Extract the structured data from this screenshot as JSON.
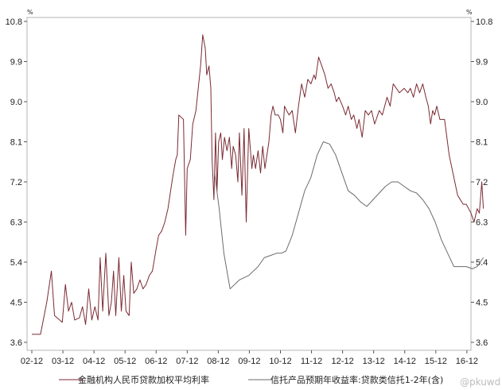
{
  "chart_data": {
    "type": "line",
    "y_unit": "%",
    "ylim": [
      3.6,
      10.8
    ],
    "y_ticks": [
      "10.8",
      "9.9",
      "9.0",
      "8.1",
      "7.2",
      "6.3",
      "5.4",
      "4.5",
      "3.6"
    ],
    "x_range": [
      2002.92,
      2017.0
    ],
    "x_ticks": [
      {
        "x": 2002.92,
        "label": "02-12"
      },
      {
        "x": 2003.92,
        "label": "03-12"
      },
      {
        "x": 2004.92,
        "label": "04-12"
      },
      {
        "x": 2005.92,
        "label": "05-12"
      },
      {
        "x": 2006.92,
        "label": "06-12"
      },
      {
        "x": 2007.92,
        "label": "07-12"
      },
      {
        "x": 2008.92,
        "label": "08-12"
      },
      {
        "x": 2009.92,
        "label": "09-12"
      },
      {
        "x": 2010.92,
        "label": "10-12"
      },
      {
        "x": 2011.92,
        "label": "11-12"
      },
      {
        "x": 2012.92,
        "label": "12-12"
      },
      {
        "x": 2013.92,
        "label": "13-12"
      },
      {
        "x": 2014.92,
        "label": "14-12"
      },
      {
        "x": 2015.92,
        "label": "15-12"
      },
      {
        "x": 2016.92,
        "label": "16-12"
      }
    ],
    "series": [
      {
        "name": "金融机构人民币贷款加权平均利率",
        "color": "#7b2a33",
        "points": [
          [
            2002.92,
            3.78
          ],
          [
            2003.2,
            3.78
          ],
          [
            2003.4,
            4.5
          ],
          [
            2003.55,
            5.2
          ],
          [
            2003.65,
            4.2
          ],
          [
            2003.9,
            4.05
          ],
          [
            2004.0,
            4.9
          ],
          [
            2004.1,
            4.3
          ],
          [
            2004.2,
            4.5
          ],
          [
            2004.3,
            4.1
          ],
          [
            2004.45,
            4.15
          ],
          [
            2004.55,
            4.4
          ],
          [
            2004.65,
            4.0
          ],
          [
            2004.75,
            4.8
          ],
          [
            2004.85,
            4.1
          ],
          [
            2004.95,
            4.4
          ],
          [
            2005.05,
            4.1
          ],
          [
            2005.12,
            5.5
          ],
          [
            2005.2,
            4.3
          ],
          [
            2005.3,
            5.6
          ],
          [
            2005.4,
            4.2
          ],
          [
            2005.48,
            4.5
          ],
          [
            2005.55,
            5.2
          ],
          [
            2005.62,
            4.2
          ],
          [
            2005.72,
            5.5
          ],
          [
            2005.8,
            4.3
          ],
          [
            2005.88,
            5.1
          ],
          [
            2005.95,
            4.3
          ],
          [
            2006.05,
            4.2
          ],
          [
            2006.12,
            5.4
          ],
          [
            2006.2,
            4.7
          ],
          [
            2006.3,
            4.8
          ],
          [
            2006.4,
            5.0
          ],
          [
            2006.5,
            4.8
          ],
          [
            2006.6,
            4.9
          ],
          [
            2006.7,
            5.1
          ],
          [
            2006.8,
            5.2
          ],
          [
            2006.92,
            5.7
          ],
          [
            2007.0,
            6.0
          ],
          [
            2007.1,
            6.1
          ],
          [
            2007.2,
            6.3
          ],
          [
            2007.3,
            6.6
          ],
          [
            2007.45,
            7.3
          ],
          [
            2007.55,
            7.7
          ],
          [
            2007.6,
            7.8
          ],
          [
            2007.65,
            8.7
          ],
          [
            2007.8,
            8.6
          ],
          [
            2007.87,
            6.0
          ],
          [
            2007.92,
            7.5
          ],
          [
            2008.02,
            7.7
          ],
          [
            2008.1,
            8.5
          ],
          [
            2008.2,
            8.8
          ],
          [
            2008.35,
            9.8
          ],
          [
            2008.42,
            10.5
          ],
          [
            2008.5,
            10.2
          ],
          [
            2008.55,
            9.6
          ],
          [
            2008.62,
            9.8
          ],
          [
            2008.68,
            9.3
          ],
          [
            2008.72,
            7.7
          ],
          [
            2008.78,
            6.8
          ],
          [
            2008.83,
            8.3
          ],
          [
            2008.88,
            7.0
          ],
          [
            2008.93,
            8.1
          ],
          [
            2009.0,
            8.3
          ],
          [
            2009.05,
            7.7
          ],
          [
            2009.12,
            8.2
          ],
          [
            2009.2,
            7.9
          ],
          [
            2009.28,
            8.2
          ],
          [
            2009.35,
            7.5
          ],
          [
            2009.4,
            8.0
          ],
          [
            2009.48,
            7.8
          ],
          [
            2009.55,
            7.2
          ],
          [
            2009.6,
            8.3
          ],
          [
            2009.68,
            6.9
          ],
          [
            2009.75,
            8.4
          ],
          [
            2009.82,
            6.3
          ],
          [
            2009.9,
            8.4
          ],
          [
            2010.0,
            7.5
          ],
          [
            2010.05,
            7.8
          ],
          [
            2010.12,
            7.5
          ],
          [
            2010.2,
            7.9
          ],
          [
            2010.28,
            7.4
          ],
          [
            2010.35,
            8.0
          ],
          [
            2010.42,
            7.5
          ],
          [
            2010.55,
            8.1
          ],
          [
            2010.62,
            8.7
          ],
          [
            2010.68,
            8.9
          ],
          [
            2010.75,
            8.7
          ],
          [
            2010.85,
            8.7
          ],
          [
            2010.92,
            8.6
          ],
          [
            2011.0,
            8.3
          ],
          [
            2011.05,
            8.9
          ],
          [
            2011.12,
            8.8
          ],
          [
            2011.2,
            8.7
          ],
          [
            2011.3,
            8.8
          ],
          [
            2011.4,
            8.3
          ],
          [
            2011.5,
            8.9
          ],
          [
            2011.6,
            9.4
          ],
          [
            2011.7,
            9.1
          ],
          [
            2011.8,
            9.5
          ],
          [
            2011.9,
            9.4
          ],
          [
            2012.0,
            9.6
          ],
          [
            2012.05,
            9.5
          ],
          [
            2012.15,
            10.0
          ],
          [
            2012.25,
            9.8
          ],
          [
            2012.35,
            9.6
          ],
          [
            2012.45,
            9.3
          ],
          [
            2012.55,
            9.4
          ],
          [
            2012.65,
            9.2
          ],
          [
            2012.72,
            9.0
          ],
          [
            2012.8,
            9.1
          ],
          [
            2012.92,
            8.9
          ],
          [
            2013.02,
            8.7
          ],
          [
            2013.1,
            8.9
          ],
          [
            2013.2,
            8.6
          ],
          [
            2013.28,
            8.7
          ],
          [
            2013.38,
            8.4
          ],
          [
            2013.45,
            8.6
          ],
          [
            2013.55,
            8.2
          ],
          [
            2013.65,
            8.8
          ],
          [
            2013.75,
            8.7
          ],
          [
            2013.85,
            8.8
          ],
          [
            2013.95,
            8.5
          ],
          [
            2014.1,
            8.8
          ],
          [
            2014.2,
            8.7
          ],
          [
            2014.35,
            9.1
          ],
          [
            2014.45,
            8.9
          ],
          [
            2014.55,
            9.4
          ],
          [
            2014.65,
            9.3
          ],
          [
            2014.75,
            9.2
          ],
          [
            2014.9,
            9.3
          ],
          [
            2015.02,
            9.2
          ],
          [
            2015.1,
            9.3
          ],
          [
            2015.2,
            9.1
          ],
          [
            2015.3,
            9.4
          ],
          [
            2015.4,
            9.2
          ],
          [
            2015.5,
            9.4
          ],
          [
            2015.6,
            9.1
          ],
          [
            2015.68,
            8.9
          ],
          [
            2015.75,
            8.5
          ],
          [
            2015.82,
            8.8
          ],
          [
            2015.88,
            8.7
          ],
          [
            2015.95,
            8.9
          ],
          [
            2016.05,
            8.6
          ],
          [
            2016.2,
            8.6
          ],
          [
            2016.35,
            7.8
          ],
          [
            2016.5,
            7.3
          ],
          [
            2016.62,
            6.9
          ],
          [
            2016.8,
            6.7
          ],
          [
            2016.9,
            6.7
          ],
          [
            2017.05,
            6.5
          ],
          [
            2017.15,
            6.3
          ],
          [
            2017.25,
            6.6
          ],
          [
            2017.32,
            6.5
          ],
          [
            2017.4,
            7.2
          ],
          [
            2017.45,
            6.6
          ]
        ]
      },
      {
        "name": "信托产品预期年收益率:贷款类信托1-2年(含)",
        "color": "#6b6b6b",
        "points": [
          [
            2008.8,
            7.4
          ],
          [
            2008.95,
            6.6
          ],
          [
            2009.1,
            5.6
          ],
          [
            2009.3,
            4.8
          ],
          [
            2009.6,
            5.0
          ],
          [
            2009.9,
            5.1
          ],
          [
            2010.2,
            5.3
          ],
          [
            2010.4,
            5.5
          ],
          [
            2010.6,
            5.55
          ],
          [
            2010.8,
            5.6
          ],
          [
            2010.95,
            5.6
          ],
          [
            2011.1,
            5.65
          ],
          [
            2011.3,
            6.0
          ],
          [
            2011.5,
            6.5
          ],
          [
            2011.7,
            7.0
          ],
          [
            2011.9,
            7.3
          ],
          [
            2012.1,
            7.8
          ],
          [
            2012.3,
            8.1
          ],
          [
            2012.5,
            8.05
          ],
          [
            2012.7,
            7.8
          ],
          [
            2012.9,
            7.4
          ],
          [
            2013.1,
            7.0
          ],
          [
            2013.3,
            6.9
          ],
          [
            2013.5,
            6.75
          ],
          [
            2013.7,
            6.65
          ],
          [
            2013.9,
            6.8
          ],
          [
            2014.1,
            6.95
          ],
          [
            2014.3,
            7.1
          ],
          [
            2014.5,
            7.2
          ],
          [
            2014.7,
            7.2
          ],
          [
            2014.9,
            7.1
          ],
          [
            2015.1,
            7.0
          ],
          [
            2015.3,
            6.95
          ],
          [
            2015.5,
            6.8
          ],
          [
            2015.7,
            6.6
          ],
          [
            2015.9,
            6.3
          ],
          [
            2016.1,
            5.9
          ],
          [
            2016.3,
            5.6
          ],
          [
            2016.5,
            5.3
          ],
          [
            2016.7,
            5.3
          ],
          [
            2016.9,
            5.3
          ],
          [
            2017.1,
            5.25
          ],
          [
            2017.25,
            5.3
          ],
          [
            2017.45,
            5.5
          ]
        ]
      }
    ]
  },
  "watermark": "@pkuwd"
}
